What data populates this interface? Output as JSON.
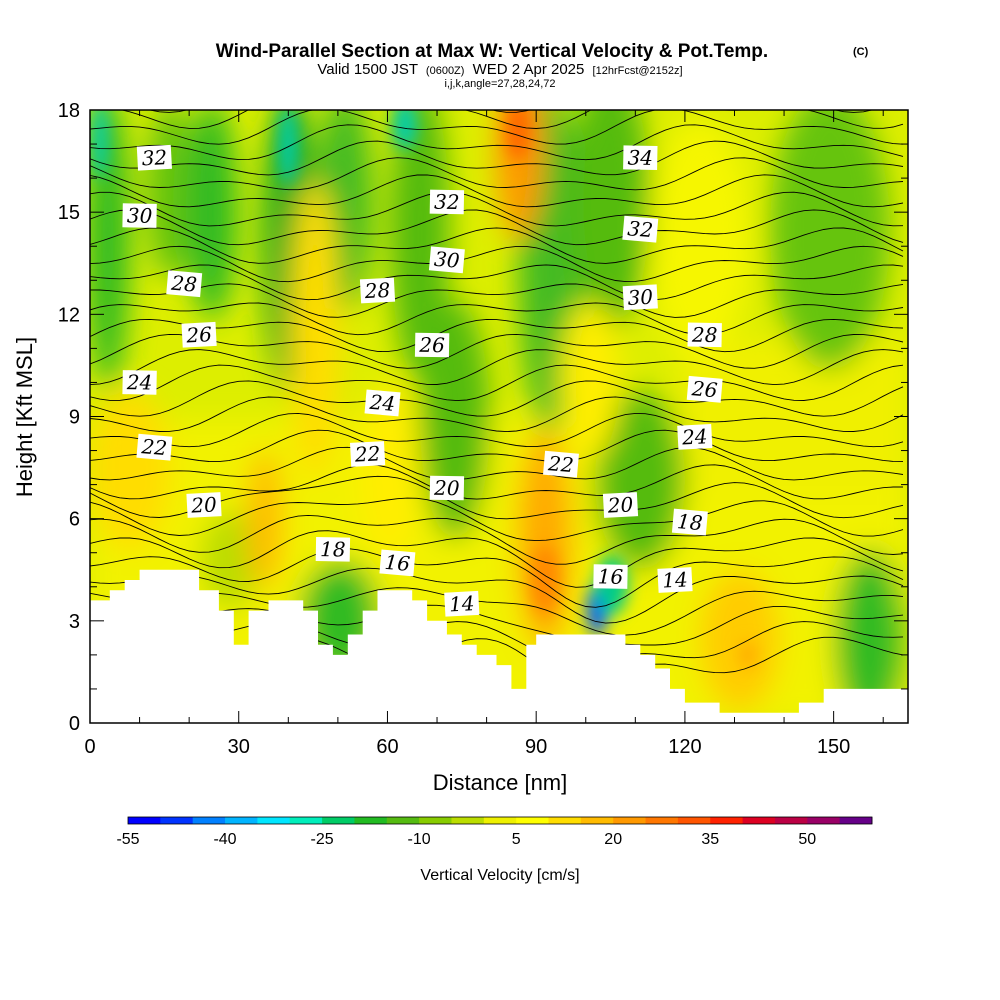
{
  "chart_data": {
    "type": "heatmap",
    "title": "Wind-Parallel Section at Max W: Vertical Velocity & Pot.Temp.",
    "title_mark": "(C)",
    "subtitle_prefix": "Valid 1500 JST",
    "subtitle_utc": "(0600Z)",
    "subtitle_date": "WED 2 Apr 2025",
    "subtitle_run": "[12hrFcst@2152z]",
    "subtitle_params": "i,j,k,angle=27,28,24,72",
    "xlabel": "Distance [nm]",
    "ylabel": "Height [Kft MSL]",
    "xlim": [
      0,
      165
    ],
    "ylim": [
      0,
      18
    ],
    "x_ticks": [
      "0",
      "30",
      "60",
      "90",
      "120",
      "150"
    ],
    "x_tick_values": [
      0,
      30,
      60,
      90,
      120,
      150
    ],
    "y_ticks": [
      "0",
      "3",
      "6",
      "9",
      "12",
      "15",
      "18"
    ],
    "y_tick_values": [
      0,
      3,
      6,
      9,
      12,
      15,
      18
    ],
    "colorbar": {
      "label": "Vertical Velocity [cm/s]",
      "min": -55,
      "max": 60,
      "step": 5,
      "tick_labels": [
        "-55",
        "-40",
        "-25",
        "-10",
        "5",
        "20",
        "35",
        "50"
      ],
      "tick_values": [
        -55,
        -40,
        -25,
        -10,
        5,
        20,
        35,
        50
      ],
      "colors": [
        "#0000ff",
        "#0033ff",
        "#0080ff",
        "#00b4ff",
        "#00e6ff",
        "#00eebb",
        "#00cc66",
        "#22bb22",
        "#55bb11",
        "#88cc00",
        "#bbdd00",
        "#eef000",
        "#ffff00",
        "#ffdd00",
        "#ffbb00",
        "#ff9900",
        "#ff7700",
        "#ff5500",
        "#ff2200",
        "#dd0022",
        "#bb0044",
        "#990066",
        "#660088"
      ]
    },
    "terrain_height_kft": [
      [
        0,
        3.6
      ],
      [
        4,
        3.6
      ],
      [
        4,
        3.9
      ],
      [
        7,
        3.9
      ],
      [
        7,
        4.2
      ],
      [
        10,
        4.2
      ],
      [
        10,
        4.5
      ],
      [
        22,
        4.5
      ],
      [
        22,
        3.9
      ],
      [
        26,
        3.9
      ],
      [
        26,
        3.3
      ],
      [
        29,
        3.3
      ],
      [
        29,
        2.3
      ],
      [
        32,
        2.3
      ],
      [
        32,
        3.3
      ],
      [
        36,
        3.3
      ],
      [
        36,
        3.6
      ],
      [
        43,
        3.6
      ],
      [
        43,
        3.3
      ],
      [
        46,
        3.3
      ],
      [
        46,
        2.3
      ],
      [
        49,
        2.3
      ],
      [
        49,
        2.0
      ],
      [
        52,
        2.0
      ],
      [
        52,
        2.6
      ],
      [
        55,
        2.6
      ],
      [
        55,
        3.3
      ],
      [
        58,
        3.3
      ],
      [
        58,
        3.9
      ],
      [
        65,
        3.9
      ],
      [
        65,
        3.6
      ],
      [
        68,
        3.6
      ],
      [
        68,
        3.0
      ],
      [
        72,
        3.0
      ],
      [
        72,
        2.6
      ],
      [
        75,
        2.6
      ],
      [
        75,
        2.3
      ],
      [
        78,
        2.3
      ],
      [
        78,
        2.0
      ],
      [
        82,
        2.0
      ],
      [
        82,
        1.7
      ],
      [
        85,
        1.7
      ],
      [
        85,
        1.0
      ],
      [
        88,
        1.0
      ],
      [
        88,
        2.3
      ],
      [
        90,
        2.3
      ],
      [
        90,
        2.6
      ],
      [
        108,
        2.6
      ],
      [
        108,
        2.3
      ],
      [
        111,
        2.3
      ],
      [
        111,
        2.0
      ],
      [
        114,
        2.0
      ],
      [
        114,
        1.6
      ],
      [
        117,
        1.6
      ],
      [
        117,
        1.0
      ],
      [
        120,
        1.0
      ],
      [
        120,
        0.6
      ],
      [
        127,
        0.6
      ],
      [
        127,
        0.3
      ],
      [
        143,
        0.3
      ],
      [
        143,
        0.6
      ],
      [
        148,
        0.6
      ],
      [
        148,
        1.0
      ],
      [
        165,
        1.0
      ]
    ],
    "velocity_features_cms": [
      {
        "x": 3,
        "y": 15.5,
        "w": -25
      },
      {
        "x": 40,
        "y": 16.5,
        "w": -30
      },
      {
        "x": 64,
        "y": 17.5,
        "w": -25
      },
      {
        "x": 103,
        "y": 3.2,
        "w": -50
      },
      {
        "x": 86,
        "y": 16.5,
        "w": 35
      },
      {
        "x": 90,
        "y": 4.2,
        "w": 25
      },
      {
        "x": 35,
        "y": 5.5,
        "w": 20
      }
    ],
    "theta_labels": [
      {
        "text": "32",
        "x": 13,
        "y": 16.6
      },
      {
        "text": "30",
        "x": 10,
        "y": 14.9
      },
      {
        "text": "28",
        "x": 19,
        "y": 12.9
      },
      {
        "text": "26",
        "x": 22,
        "y": 11.4
      },
      {
        "text": "24",
        "x": 10,
        "y": 10.0
      },
      {
        "text": "22",
        "x": 13,
        "y": 8.1
      },
      {
        "text": "20",
        "x": 23,
        "y": 6.4
      },
      {
        "text": "18",
        "x": 49,
        "y": 5.1
      },
      {
        "text": "16",
        "x": 62,
        "y": 4.7
      },
      {
        "text": "14",
        "x": 75,
        "y": 3.5
      },
      {
        "text": "32",
        "x": 72,
        "y": 15.3
      },
      {
        "text": "30",
        "x": 72,
        "y": 13.6
      },
      {
        "text": "28",
        "x": 58,
        "y": 12.7
      },
      {
        "text": "26",
        "x": 69,
        "y": 11.1
      },
      {
        "text": "24",
        "x": 59,
        "y": 9.4
      },
      {
        "text": "22",
        "x": 56,
        "y": 7.9
      },
      {
        "text": "20",
        "x": 72,
        "y": 6.9
      },
      {
        "text": "22",
        "x": 95,
        "y": 7.6
      },
      {
        "text": "20",
        "x": 107,
        "y": 6.4
      },
      {
        "text": "16",
        "x": 105,
        "y": 4.3
      },
      {
        "text": "18",
        "x": 121,
        "y": 5.9
      },
      {
        "text": "14",
        "x": 118,
        "y": 4.2
      },
      {
        "text": "34",
        "x": 111,
        "y": 16.6
      },
      {
        "text": "32",
        "x": 111,
        "y": 14.5
      },
      {
        "text": "30",
        "x": 111,
        "y": 12.5
      },
      {
        "text": "28",
        "x": 124,
        "y": 11.4
      },
      {
        "text": "26",
        "x": 124,
        "y": 9.8
      },
      {
        "text": "24",
        "x": 122,
        "y": 8.4
      }
    ]
  }
}
